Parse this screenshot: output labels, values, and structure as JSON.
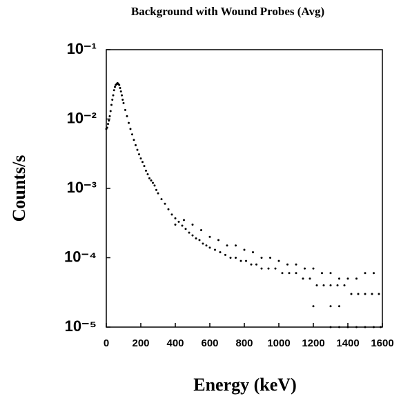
{
  "chart_data": {
    "type": "scatter",
    "title": "Background with Wound Probes (Avg)",
    "xlabel": "Energy (keV)",
    "ylabel": "Counts/s",
    "log_y": true,
    "grid": false,
    "color": "#000000",
    "xlim": [
      0,
      1600
    ],
    "xticks": [
      0,
      200,
      400,
      600,
      800,
      1000,
      1200,
      1400,
      1600
    ],
    "ylim": [
      1e-05,
      0.1
    ],
    "yticks": [
      {
        "value": 0.1,
        "label": "10⁻¹"
      },
      {
        "value": 0.01,
        "label": "10⁻²"
      },
      {
        "value": 0.001,
        "label": "10⁻³"
      },
      {
        "value": 0.0001,
        "label": "10⁻⁴"
      },
      {
        "value": 1e-05,
        "label": "10⁻⁵"
      }
    ],
    "series": [
      {
        "name": "Background",
        "color": "#000000",
        "x": [
          0,
          5,
          10,
          15,
          20,
          25,
          30,
          35,
          40,
          45,
          50,
          55,
          60,
          65,
          70,
          75,
          80,
          85,
          90,
          95,
          100,
          110,
          120,
          130,
          140,
          150,
          160,
          170,
          180,
          190,
          200,
          210,
          220,
          230,
          240,
          250,
          260,
          270,
          280,
          290,
          300,
          320,
          340,
          360,
          380,
          400,
          420,
          440,
          460,
          480,
          500,
          520,
          540,
          560,
          580,
          600,
          630,
          660,
          690,
          720,
          750,
          780,
          810,
          840,
          870,
          900,
          940,
          980,
          1020,
          1060,
          1100,
          1140,
          1180,
          1220,
          1260,
          1300,
          1340,
          1380,
          1420,
          1460,
          1500,
          1540,
          1580,
          400,
          450,
          500,
          550,
          600,
          650,
          700,
          750,
          800,
          850,
          900,
          950,
          1000,
          1050,
          1100,
          1150,
          1200,
          1250,
          1300,
          1350,
          1400,
          1450,
          1500,
          1550,
          1300,
          1350,
          1400,
          1450,
          1500,
          1550,
          1590,
          1200,
          1300,
          1350
        ],
        "values": [
          0.0072,
          0.0075,
          0.0085,
          0.0095,
          0.011,
          0.013,
          0.016,
          0.019,
          0.022,
          0.026,
          0.029,
          0.031,
          0.032,
          0.033,
          0.032,
          0.031,
          0.028,
          0.025,
          0.022,
          0.019,
          0.017,
          0.0135,
          0.011,
          0.0088,
          0.0072,
          0.006,
          0.005,
          0.0042,
          0.0036,
          0.0031,
          0.0027,
          0.0024,
          0.0021,
          0.0018,
          0.0016,
          0.0014,
          0.0013,
          0.0012,
          0.0011,
          0.00095,
          0.00085,
          0.0007,
          0.0006,
          0.0005,
          0.00042,
          0.00037,
          0.00033,
          0.00029,
          0.00026,
          0.00023,
          0.00021,
          0.00019,
          0.00018,
          0.00016,
          0.00015,
          0.00014,
          0.00013,
          0.00012,
          0.00011,
          0.0001,
          0.0001,
          9e-05,
          9e-05,
          8e-05,
          8e-05,
          7e-05,
          7e-05,
          7e-05,
          6e-05,
          6e-05,
          6e-05,
          5e-05,
          5e-05,
          4e-05,
          4e-05,
          4e-05,
          4e-05,
          4e-05,
          3e-05,
          3e-05,
          3e-05,
          3e-05,
          3e-05,
          0.0003,
          0.00035,
          0.0003,
          0.00025,
          0.0002,
          0.00018,
          0.00015,
          0.00015,
          0.00013,
          0.00012,
          0.0001,
          0.0001,
          9e-05,
          8e-05,
          8e-05,
          7e-05,
          7e-05,
          6e-05,
          6e-05,
          5e-05,
          5e-05,
          5e-05,
          6e-05,
          6e-05,
          1e-05,
          1e-05,
          1e-05,
          1e-05,
          1e-05,
          1e-05,
          1e-05,
          2e-05,
          2e-05,
          2e-05
        ]
      }
    ]
  }
}
